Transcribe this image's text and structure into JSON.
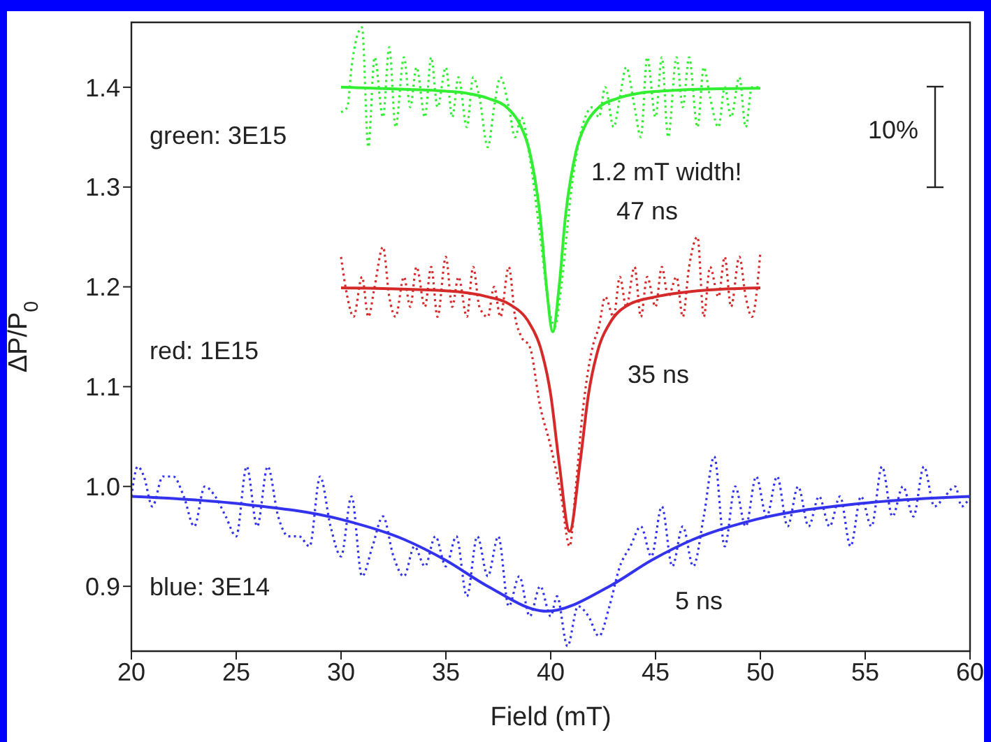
{
  "chart_data": {
    "type": "line",
    "xlabel": "Field (mT)",
    "ylabel": "ΔP/P$_{0}$",
    "xlim": [
      20,
      60
    ],
    "xticks": [
      20,
      25,
      30,
      35,
      40,
      45,
      50,
      55,
      60
    ],
    "ylim": [
      0.835,
      1.465
    ],
    "yticks": [
      0.9,
      {
        "value": 1.0,
        "label": "1.0"
      },
      1.1,
      1.2,
      1.3,
      1.4
    ],
    "grid": false,
    "marker": "none",
    "series": [
      {
        "color": "#33ee33",
        "line_style": "dotted",
        "x": [
          30,
          30.3,
          30.5,
          31,
          31.3,
          31.6,
          32,
          32.3,
          32.6,
          33,
          33.3,
          33.6,
          34,
          34.3,
          34.6,
          35,
          35.3,
          35.6,
          36,
          36.3,
          36.6,
          37,
          37.3,
          37.6,
          38,
          38.3,
          38.6,
          39,
          39.5,
          40,
          40.2,
          40.5,
          41,
          41.5,
          42,
          42.3,
          42.6,
          43,
          43.3,
          43.6,
          44,
          44.3,
          44.6,
          45,
          45.3,
          45.6,
          46,
          46.3,
          46.6,
          47,
          47.3,
          47.6,
          48,
          48.3,
          48.6,
          49,
          49.3,
          49.6,
          50
        ],
        "values": [
          1.375,
          1.38,
          1.42,
          1.46,
          1.34,
          1.43,
          1.37,
          1.44,
          1.36,
          1.43,
          1.38,
          1.42,
          1.37,
          1.43,
          1.38,
          1.42,
          1.37,
          1.41,
          1.36,
          1.41,
          1.39,
          1.34,
          1.38,
          1.41,
          1.38,
          1.35,
          1.37,
          1.33,
          1.25,
          1.17,
          1.16,
          1.2,
          1.3,
          1.36,
          1.38,
          1.37,
          1.4,
          1.36,
          1.39,
          1.42,
          1.38,
          1.35,
          1.43,
          1.37,
          1.43,
          1.35,
          1.43,
          1.38,
          1.43,
          1.36,
          1.42,
          1.39,
          1.36,
          1.4,
          1.37,
          1.41,
          1.36,
          1.4,
          1.4
        ]
      },
      {
        "color": "#33ee33",
        "line_style": "solid",
        "x": [
          30,
          33,
          35,
          36,
          37,
          38,
          38.5,
          39,
          39.5,
          39.8,
          40.1,
          40.4,
          40.7,
          41.2,
          41.7,
          42.2,
          43.2,
          44.2,
          45.2,
          47,
          50
        ],
        "values": [
          1.4,
          1.398,
          1.396,
          1.394,
          1.389,
          1.378,
          1.364,
          1.335,
          1.27,
          1.2,
          1.155,
          1.2,
          1.27,
          1.335,
          1.364,
          1.378,
          1.389,
          1.394,
          1.396,
          1.398,
          1.399
        ]
      },
      {
        "color": "#d42a2a",
        "line_style": "dotted",
        "x": [
          30,
          30.3,
          30.6,
          31,
          31.3,
          31.6,
          32,
          32.3,
          32.6,
          33,
          33.3,
          33.6,
          34,
          34.3,
          34.6,
          35,
          35.3,
          35.6,
          36,
          36.3,
          36.6,
          37,
          37.3,
          37.6,
          38,
          38.3,
          38.6,
          39,
          39.5,
          40,
          40.5,
          40.9,
          41.2,
          41.5,
          42,
          42.3,
          42.6,
          43,
          43.3,
          43.6,
          44,
          44.3,
          44.6,
          45,
          45.3,
          45.6,
          46,
          46.3,
          46.6,
          47,
          47.3,
          47.6,
          48,
          48.3,
          48.6,
          49,
          49.3,
          49.6,
          50
        ],
        "values": [
          1.23,
          1.19,
          1.17,
          1.21,
          1.17,
          1.2,
          1.24,
          1.19,
          1.17,
          1.21,
          1.18,
          1.22,
          1.18,
          1.22,
          1.17,
          1.23,
          1.18,
          1.21,
          1.17,
          1.22,
          1.18,
          1.17,
          1.2,
          1.17,
          1.22,
          1.17,
          1.15,
          1.14,
          1.08,
          1.04,
          0.99,
          0.94,
          1.0,
          1.07,
          1.14,
          1.16,
          1.19,
          1.17,
          1.21,
          1.18,
          1.22,
          1.17,
          1.21,
          1.18,
          1.22,
          1.19,
          1.21,
          1.17,
          1.22,
          1.25,
          1.17,
          1.22,
          1.19,
          1.23,
          1.18,
          1.23,
          1.19,
          1.17,
          1.235
        ]
      },
      {
        "color": "#d42a2a",
        "line_style": "solid",
        "x": [
          30,
          35,
          37,
          38,
          39,
          39.5,
          40,
          40.4,
          40.9,
          41.4,
          41.8,
          42.3,
          42.8,
          43.8,
          45,
          47,
          50
        ],
        "values": [
          1.199,
          1.196,
          1.19,
          1.183,
          1.163,
          1.14,
          1.092,
          1.024,
          0.955,
          1.024,
          1.092,
          1.14,
          1.163,
          1.183,
          1.19,
          1.196,
          1.199
        ]
      },
      {
        "color": "#3333ee",
        "line_style": "dotted",
        "x": [
          20,
          20.3,
          20.6,
          21,
          21.5,
          22,
          22.5,
          23,
          23.5,
          24,
          24.5,
          25,
          25.5,
          26,
          26.5,
          27,
          27.5,
          28,
          28.5,
          29,
          29.5,
          30,
          30.5,
          31,
          31.5,
          32,
          32.5,
          33,
          33.5,
          34,
          34.5,
          35,
          35.5,
          36,
          36.5,
          37,
          37.5,
          38,
          38.5,
          39,
          39.5,
          40,
          40.3,
          40.8,
          41.3,
          41.8,
          42.3,
          42.8,
          43.3,
          43.8,
          44.3,
          44.8,
          45.3,
          45.8,
          46.3,
          46.8,
          47.3,
          47.8,
          48.3,
          48.8,
          49.3,
          49.8,
          50.3,
          50.8,
          51.3,
          51.8,
          52.3,
          52.8,
          53.3,
          53.8,
          54.3,
          54.8,
          55.3,
          55.8,
          56.3,
          56.8,
          57.3,
          57.8,
          58.3,
          58.8,
          59.3,
          59.6,
          60
        ],
        "values": [
          0.99,
          1.02,
          1.01,
          0.98,
          1.01,
          1.01,
          0.99,
          0.96,
          1.0,
          0.99,
          0.97,
          0.95,
          1.02,
          0.96,
          1.02,
          0.97,
          0.95,
          0.95,
          0.94,
          1.01,
          0.96,
          0.93,
          0.99,
          0.91,
          0.94,
          0.97,
          0.93,
          0.91,
          0.94,
          0.92,
          0.95,
          0.92,
          0.95,
          0.89,
          0.95,
          0.91,
          0.95,
          0.88,
          0.91,
          0.87,
          0.9,
          0.87,
          0.89,
          0.84,
          0.88,
          0.87,
          0.85,
          0.88,
          0.92,
          0.94,
          0.96,
          0.93,
          0.98,
          0.92,
          0.96,
          0.92,
          0.97,
          1.03,
          0.94,
          1.0,
          0.96,
          1.01,
          0.97,
          1.01,
          0.96,
          1.0,
          0.96,
          0.99,
          0.96,
          0.99,
          0.94,
          0.99,
          0.96,
          1.02,
          0.97,
          1.0,
          0.97,
          1.02,
          0.98,
          0.99,
          1.0,
          0.98,
          0.99
        ]
      },
      {
        "color": "#3333ee",
        "line_style": "solid",
        "x": [
          20,
          25,
          30,
          33,
          35,
          37,
          39.8,
          42.8,
          44.8,
          46.8,
          49.8,
          54.8,
          60
        ],
        "values": [
          0.99,
          0.983,
          0.967,
          0.947,
          0.926,
          0.9,
          0.875,
          0.9,
          0.926,
          0.947,
          0.967,
          0.983,
          0.99
        ]
      }
    ],
    "annotations": [
      "green: 3E15",
      "1.2 mT width!",
      "47 ns",
      "red: 1E15",
      "35 ns",
      "blue: 3E14",
      "5 ns",
      "10%"
    ]
  }
}
